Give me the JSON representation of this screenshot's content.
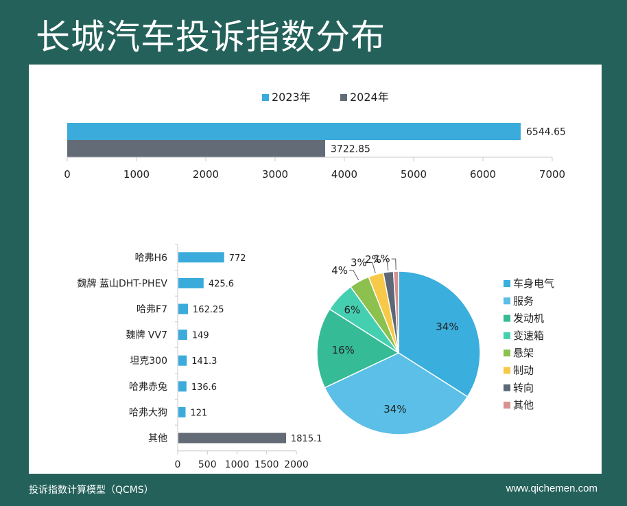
{
  "header": {
    "title": "长城汽车投诉指数分布"
  },
  "footer": {
    "left": "投诉指数计算模型（QCMS）",
    "right": "www.qichemen.com"
  },
  "colors": {
    "background": "#24615a",
    "series_2023": "#3aabdb",
    "series_2024": "#636b77",
    "bar_other": "#636b77"
  },
  "chart_data": [
    {
      "type": "bar",
      "orientation": "horizontal",
      "categories": [
        ""
      ],
      "series": [
        {
          "name": "2023年",
          "values": [
            6544.65
          ],
          "labels": [
            "6544.65"
          ],
          "color": "#3aabdb"
        },
        {
          "name": "2024年",
          "values": [
            3722.85
          ],
          "labels": [
            "3722.85"
          ],
          "color": "#636b77"
        }
      ],
      "xlim": [
        0,
        7000
      ],
      "ticks": [
        "0",
        "1000",
        "2000",
        "3000",
        "4000",
        "5000",
        "6000",
        "7000"
      ],
      "legend": "top"
    },
    {
      "type": "bar",
      "orientation": "horizontal",
      "categories": [
        "哈弗H6",
        "魏牌 蓝山DHT-PHEV",
        "哈弗F7",
        "魏牌 VV7",
        "坦克300",
        "哈弗赤兔",
        "哈弗大狗",
        "其他"
      ],
      "values": [
        772,
        425.6,
        162.25,
        149,
        141.3,
        136.6,
        121,
        1815.1
      ],
      "labels": [
        "772",
        "425.6",
        "162.25",
        "149",
        "141.3",
        "136.6",
        "121",
        "1815.1"
      ],
      "colors": [
        "#3aabdb",
        "#3aabdb",
        "#3aabdb",
        "#3aabdb",
        "#3aabdb",
        "#3aabdb",
        "#3aabdb",
        "#636b77"
      ],
      "xlim": [
        0,
        2000
      ],
      "ticks": [
        "0",
        "500",
        "1000",
        "1500",
        "2000"
      ]
    },
    {
      "type": "pie",
      "slices": [
        {
          "name": "车身电气",
          "value": 34,
          "label": "34%",
          "color": "#3aaedc"
        },
        {
          "name": "服务",
          "value": 34,
          "label": "34%",
          "color": "#5bbfe7"
        },
        {
          "name": "发动机",
          "value": 16,
          "label": "16%",
          "color": "#35bb96"
        },
        {
          "name": "变速箱",
          "value": 6,
          "label": "6%",
          "color": "#44d0b0"
        },
        {
          "name": "悬架",
          "value": 4,
          "label": "4%",
          "color": "#8cc04f"
        },
        {
          "name": "制动",
          "value": 3,
          "label": "3%",
          "color": "#f7c948"
        },
        {
          "name": "转向",
          "value": 2,
          "label": "2%",
          "color": "#5d6877"
        },
        {
          "name": "其他",
          "value": 1,
          "label": "1%",
          "color": "#d89090"
        }
      ],
      "legend": "right"
    }
  ]
}
